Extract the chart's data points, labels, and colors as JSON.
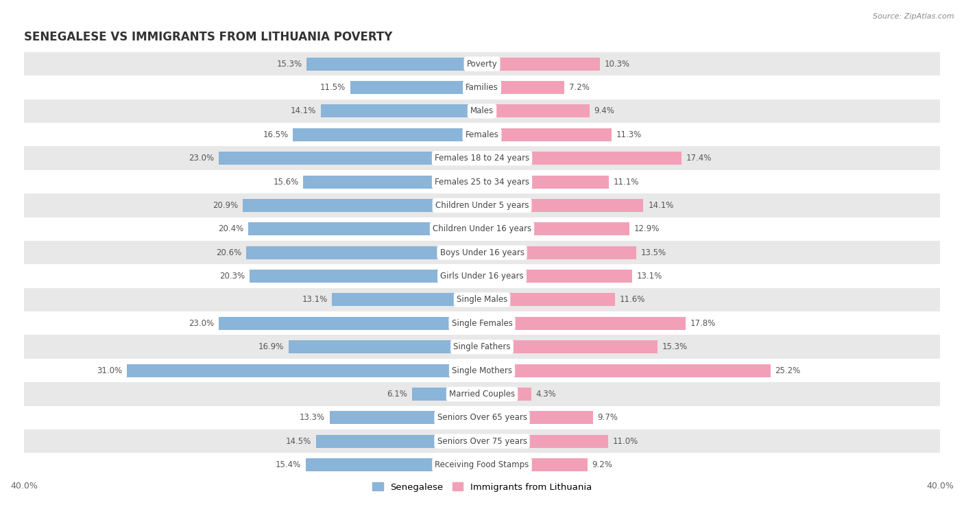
{
  "title": "SENEGALESE VS IMMIGRANTS FROM LITHUANIA POVERTY",
  "source": "Source: ZipAtlas.com",
  "categories": [
    "Poverty",
    "Families",
    "Males",
    "Females",
    "Females 18 to 24 years",
    "Females 25 to 34 years",
    "Children Under 5 years",
    "Children Under 16 years",
    "Boys Under 16 years",
    "Girls Under 16 years",
    "Single Males",
    "Single Females",
    "Single Fathers",
    "Single Mothers",
    "Married Couples",
    "Seniors Over 65 years",
    "Seniors Over 75 years",
    "Receiving Food Stamps"
  ],
  "senegalese": [
    15.3,
    11.5,
    14.1,
    16.5,
    23.0,
    15.6,
    20.9,
    20.4,
    20.6,
    20.3,
    13.1,
    23.0,
    16.9,
    31.0,
    6.1,
    13.3,
    14.5,
    15.4
  ],
  "lithuania": [
    10.3,
    7.2,
    9.4,
    11.3,
    17.4,
    11.1,
    14.1,
    12.9,
    13.5,
    13.1,
    11.6,
    17.8,
    15.3,
    25.2,
    4.3,
    9.7,
    11.0,
    9.2
  ],
  "senegalese_color": "#8ab4d8",
  "lithuania_color": "#f2a0b8",
  "background_color": "#ffffff",
  "row_bg_light": "#ffffff",
  "row_bg_dark": "#e8e8e8",
  "xlim": 40.0,
  "bar_height": 0.55,
  "legend_label_senegalese": "Senegalese",
  "legend_label_lithuania": "Immigrants from Lithuania"
}
